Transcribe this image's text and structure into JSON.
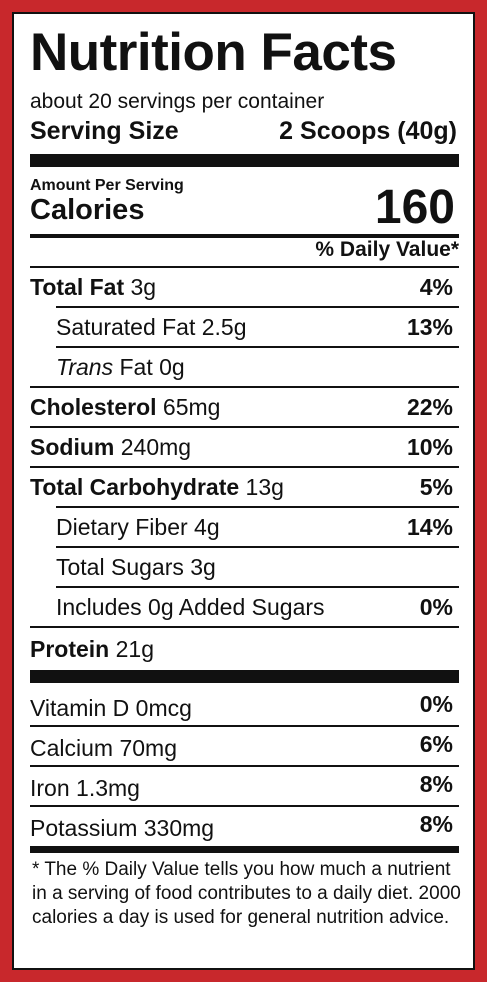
{
  "label": {
    "title": "Nutrition Facts",
    "servings_per_container": "about 20 servings per container",
    "serving_size_label": "Serving Size",
    "serving_size_value": "2 Scoops (40g)",
    "amount_per_serving": "Amount Per Serving",
    "calories_label": "Calories",
    "calories_value": "160",
    "daily_value_header": "% Daily Value*"
  },
  "nutrients": [
    {
      "name": "Total Fat",
      "amount": "3g",
      "pct": "4%"
    },
    {
      "name": "Saturated Fat",
      "amount": "2.5g",
      "pct": "13%"
    },
    {
      "name": "Trans",
      "name_suffix": "Fat",
      "amount": "0g",
      "pct": ""
    },
    {
      "name": "Cholesterol",
      "amount": "65mg",
      "pct": "22%"
    },
    {
      "name": "Sodium",
      "amount": "240mg",
      "pct": "10%"
    },
    {
      "name": "Total Carbohydrate",
      "amount": "13g",
      "pct": "5%"
    },
    {
      "name": "Dietary Fiber",
      "amount": "4g",
      "pct": "14%"
    },
    {
      "name": "Total Sugars",
      "amount": "3g",
      "pct": ""
    },
    {
      "name": "Includes 0g Added Sugars",
      "amount": "",
      "pct": "0%"
    },
    {
      "name": "Protein",
      "amount": "21g",
      "pct": ""
    }
  ],
  "vitamins": [
    {
      "name": "Vitamin D 0mcg",
      "pct": "0%"
    },
    {
      "name": "Calcium 70mg",
      "pct": "6%"
    },
    {
      "name": "Iron 1.3mg",
      "pct": "8%"
    },
    {
      "name": "Potassium 330mg",
      "pct": "8%"
    }
  ],
  "footnote": "* The % Daily Value tells you how much a nutrient in a serving of food contributes to a daily diet. 2000 calories a day is used for general nutrition advice.",
  "colors": {
    "border": "#c8282c",
    "text": "#111111",
    "background": "#ffffff"
  }
}
